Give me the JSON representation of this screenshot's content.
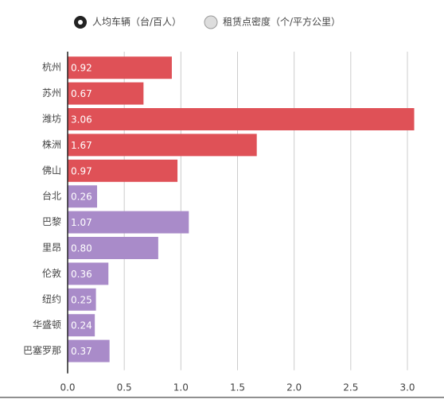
{
  "chart_data": {
    "type": "barh",
    "categories": [
      "杭州",
      "苏州",
      "潍坊",
      "株洲",
      "佛山",
      "台北",
      "巴黎",
      "里昂",
      "伦敦",
      "纽约",
      "华盛顿",
      "巴塞罗那"
    ],
    "series": [
      {
        "name": "人均车辆（台/百人）",
        "color": "#df5157",
        "values": [
          0.92,
          0.67,
          3.06,
          1.67,
          0.97,
          null,
          null,
          null,
          null,
          null,
          null,
          null
        ]
      },
      {
        "name": "租赁点密度（个/平方公里）",
        "color": "#a98bc9",
        "values": [
          null,
          null,
          null,
          null,
          null,
          0.26,
          1.07,
          0.8,
          0.36,
          0.25,
          0.24,
          0.37
        ],
        "value_labels": [
          null,
          null,
          null,
          null,
          null,
          "0.26",
          "1.07",
          "0.80",
          "0.36",
          "0.25",
          "0.24",
          "0.37"
        ]
      }
    ],
    "xlim": [
      0,
      3.0
    ],
    "xticks": [
      {
        "value": 0,
        "label": "0.0"
      },
      0.5,
      {
        "value": 1,
        "label": "1.0"
      },
      1.5,
      {
        "value": 2,
        "label": "2.0"
      },
      2.5,
      {
        "value": 3,
        "label": "3.0"
      }
    ],
    "grid": true,
    "legend": "top"
  }
}
